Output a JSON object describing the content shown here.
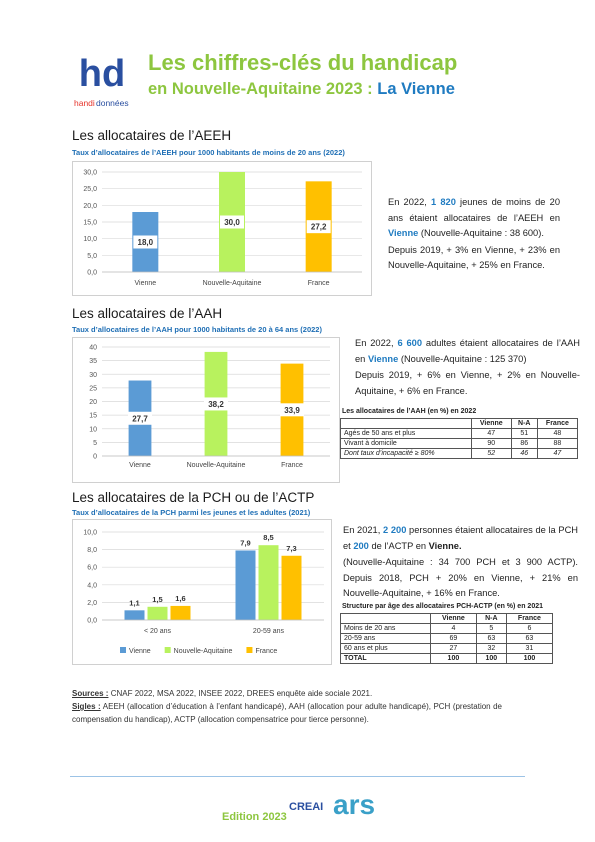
{
  "header": {
    "logo": [
      "hd",
      "handi",
      "données"
    ],
    "title": "Les chiffres-clés du handicap",
    "subtitle": "en Nouvelle-Aquitaine 2023 :",
    "subtitle_highlight": "La Vienne"
  },
  "sections": [
    {
      "heading": "Les allocataires de l’AEEH",
      "chart": {
        "type": "bar",
        "title": "Taux d’allocataires de l’AEEH pour 1000 habitants de moins de 20 ans (2022)",
        "categories": [
          "Vienne",
          "Nouvelle-Aquitaine",
          "France"
        ],
        "values": [
          18.0,
          30.0,
          27.2
        ],
        "value_labels": [
          "18,0",
          "30,0",
          "27,2"
        ],
        "colors": [
          "#5b9bd5",
          "#b8f25e",
          "#ffc000"
        ],
        "ylim": [
          0,
          30
        ],
        "yticks": [
          {
            "value": 0,
            "label": "0,0"
          },
          {
            "value": 5,
            "label": "5,0"
          },
          {
            "value": 10,
            "label": "10,0"
          },
          {
            "value": 15,
            "label": "15,0"
          },
          {
            "value": 20,
            "label": "20,0"
          },
          {
            "value": 25,
            "label": "25,0"
          },
          {
            "value": 30,
            "label": "30,0"
          }
        ],
        "grid": true
      },
      "text": [
        [
          {
            "text": "En 2022, "
          },
          {
            "text": "1 820",
            "bold": true,
            "color": "#1f7bc1"
          },
          {
            "text": " jeunes de moins de 20 ans étaient allocataires de l’AEEH en "
          },
          {
            "text": "Vienne",
            "bold": true,
            "color": "#1f7bc1"
          },
          {
            "text": " (Nouvelle-Aquitaine : 38 600)."
          }
        ],
        [
          {
            "text": "Depuis 2019, + 3% en Vienne, + 23% en Nouvelle-Aquitaine, + 25% en France."
          }
        ]
      ]
    },
    {
      "heading": "Les allocataires de l’AAH",
      "chart": {
        "type": "bar",
        "title": "Taux d’allocataires de l’AAH pour 1000 habitants de 20 à 64 ans (2022)",
        "categories": [
          "Vienne",
          "Nouvelle-Aquitaine",
          "France"
        ],
        "values": [
          27.7,
          38.2,
          33.9
        ],
        "value_labels": [
          "27,7",
          "38,2",
          "33,9"
        ],
        "colors": [
          "#5b9bd5",
          "#b8f25e",
          "#ffc000"
        ],
        "ylim": [
          0,
          40
        ],
        "yticks": [
          0,
          5,
          10,
          15,
          20,
          25,
          30,
          35,
          40
        ],
        "grid": true
      },
      "text": [
        [
          {
            "text": "En 2022, "
          },
          {
            "text": "6 600",
            "bold": true,
            "color": "#1f7bc1"
          },
          {
            "text": " adultes étaient allocataires de l’AAH en "
          },
          {
            "text": "Vienne",
            "bold": true,
            "color": "#1f7bc1"
          },
          {
            "text": " (Nouvelle-Aquitaine : 125 370)"
          }
        ],
        [
          {
            "text": "Depuis 2019, + 6% en Vienne, + 2% en Nouvelle-Aquitaine, + 6% en France."
          }
        ]
      ],
      "table": {
        "title": "Les allocataires de l’AAH (en %) en 2022",
        "columns": [
          "Vienne",
          "N-A",
          "France"
        ],
        "rows": [
          [
            "Agés de 50 ans et plus",
            47,
            51,
            48
          ],
          [
            "Vivant à domicile",
            90,
            86,
            88
          ],
          [
            "Dont taux d’incapacité ≥ 80%",
            52,
            46,
            47
          ]
        ]
      }
    },
    {
      "heading": "Les allocataires de la PCH ou de l’ACTP",
      "chart": {
        "type": "grouped-bar",
        "title": "Taux d’allocataires de la PCH parmi les jeunes et les adultes (2021)",
        "categories": [
          "< 20 ans",
          "20-59 ans"
        ],
        "series": [
          {
            "name": "Vienne",
            "color": "#5b9bd5",
            "values": [
              1.1,
              7.9
            ],
            "value_labels": [
              "1,1",
              "7,9"
            ]
          },
          {
            "name": "Nouvelle-Aquitaine",
            "color": "#b8f25e",
            "values": [
              1.5,
              8.5
            ],
            "value_labels": [
              "1,5",
              "8,5"
            ]
          },
          {
            "name": "France",
            "color": "#ffc000",
            "values": [
              1.6,
              7.3
            ],
            "value_labels": [
              "1,6",
              "7,3"
            ]
          }
        ],
        "ylim": [
          0,
          10
        ],
        "yticks": [
          {
            "value": 0,
            "label": "0,0"
          },
          {
            "value": 2,
            "label": "2,0"
          },
          {
            "value": 4,
            "label": "4,0"
          },
          {
            "value": 6,
            "label": "6,0"
          },
          {
            "value": 8,
            "label": "8,0"
          },
          {
            "value": 10,
            "label": "10,0"
          }
        ],
        "grid": true,
        "legend": "bottom"
      },
      "text": [
        [
          {
            "text": "En 2021, "
          },
          {
            "text": "2 200",
            "bold": true,
            "color": "#1f7bc1"
          },
          {
            "text": " personnes étaient allocataires de la PCH et "
          },
          {
            "text": "200",
            "bold": true,
            "color": "#1f7bc1"
          },
          {
            "text": " de l’ACTP en "
          },
          {
            "text": "Vienne.",
            "bold": true
          }
        ],
        [
          {
            "text": "(Nouvelle-Aquitaine : 34 700 PCH et 3 900 ACTP). Depuis 2018, PCH + 20% en Vienne, + 21% en Nouvelle-Aquitaine, + 16% en France."
          }
        ]
      ],
      "table": {
        "title": "Structure par âge des allocataires PCH-ACTP (en %) en 2021",
        "columns": [
          "Vienne",
          "N-A",
          "France"
        ],
        "rows": [
          [
            "Moins de 20 ans",
            4,
            5,
            6
          ],
          [
            "20-59 ans",
            69,
            63,
            63
          ],
          [
            "60 ans et plus",
            27,
            32,
            31
          ],
          [
            "TOTAL",
            100,
            100,
            100
          ]
        ]
      }
    }
  ],
  "notes": {
    "sources_label": "Sources :",
    "sources": "CNAF 2022, MSA 2022, INSEE 2022, DREES enquête aide sociale 2021.",
    "sigles_label": "Sigles :",
    "sigles": "AEEH (allocation d’éducation à l’enfant handicapé), AAH (allocation pour adulte handicapé), PCH (prestation de compensation du handicap), ACTP (allocation compensatrice pour tierce personne)."
  },
  "footer": {
    "edition": "Edition 2023",
    "logos": [
      "CREAI",
      "ars"
    ]
  }
}
